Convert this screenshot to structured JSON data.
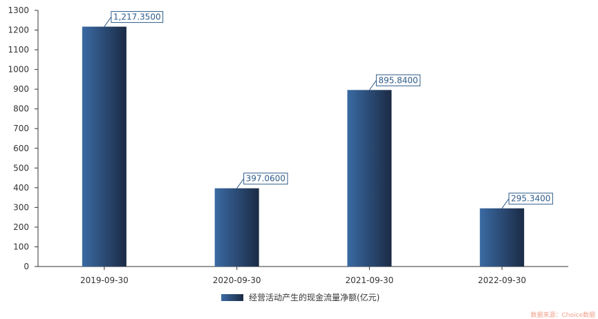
{
  "chart_data": {
    "type": "bar",
    "categories": [
      "2019-09-30",
      "2020-09-30",
      "2021-09-30",
      "2022-09-30"
    ],
    "series": [
      {
        "name": "经营活动产生的现金流量净额(亿元)",
        "values": [
          1217.35,
          397.06,
          895.84,
          295.34
        ],
        "labels": [
          "1,217.3500",
          "397.0600",
          "895.8400",
          "295.3400"
        ]
      }
    ],
    "ylim": [
      0,
      1300
    ],
    "yticks": [
      "0",
      "100",
      "200",
      "300",
      "400",
      "500",
      "600",
      "700",
      "800",
      "900",
      "1000",
      "1100",
      "1200",
      "1300"
    ],
    "grid": false,
    "legend_position": "bottom-center",
    "colors": {
      "bar_light": "#3a6aa3",
      "bar_dark": "#1b2b45",
      "label": "#2f5b8a",
      "axis": "#333333"
    }
  },
  "source_note": "数据来源：Choice数据"
}
